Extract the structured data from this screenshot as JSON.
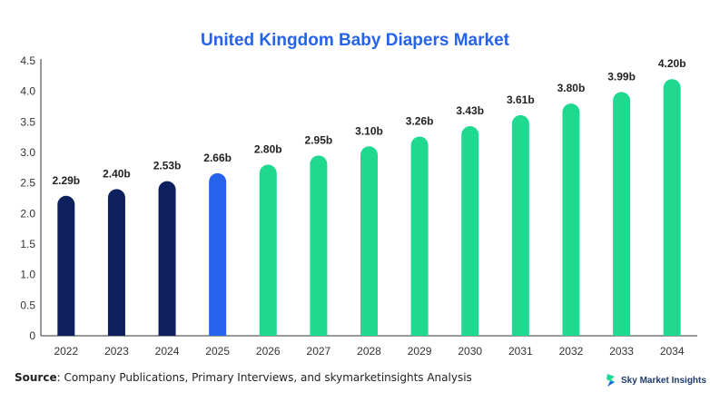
{
  "chart_data": {
    "type": "bar",
    "title": "United Kingdom Baby Diapers Market",
    "categories": [
      "2022",
      "2023",
      "2024",
      "2025",
      "2026",
      "2027",
      "2028",
      "2029",
      "2030",
      "2031",
      "2032",
      "2033",
      "2034"
    ],
    "values": [
      2.29,
      2.4,
      2.53,
      2.66,
      2.8,
      2.95,
      3.1,
      3.26,
      3.43,
      3.61,
      3.8,
      3.99,
      4.2
    ],
    "data_labels": [
      "2.29b",
      "2.40b",
      "2.53b",
      "2.66b",
      "2.80b",
      "2.95b",
      "3.10b",
      "3.26b",
      "3.43b",
      "3.61b",
      "3.80b",
      "3.99b",
      "4.20b"
    ],
    "y_ticks": [
      "0",
      "0.5",
      "1.0",
      "1.5",
      "2.0",
      "2.5",
      "3.0",
      "3.5",
      "4.0",
      "4.5"
    ],
    "ylim": [
      0,
      4.5
    ],
    "xlabel": "",
    "ylabel": "",
    "grid": false,
    "bar_colors": [
      "#0d1f5c",
      "#0d1f5c",
      "#0d1f5c",
      "#2563eb",
      "#1ed98f",
      "#1ed98f",
      "#1ed98f",
      "#1ed98f",
      "#1ed98f",
      "#1ed98f",
      "#1ed98f",
      "#1ed98f",
      "#1ed98f"
    ]
  },
  "title_color": "#2563eb",
  "source": {
    "label": "Source",
    "text": ": Company Publications, Primary Interviews, and skymarketinsights Analysis"
  },
  "logo": {
    "text": "Sky Market Insights",
    "icon": "sky-market-insights-logo-icon"
  }
}
